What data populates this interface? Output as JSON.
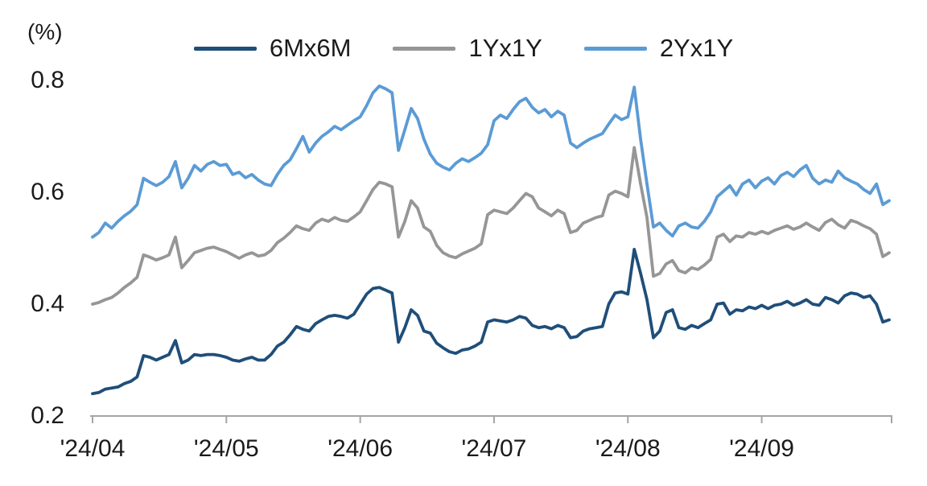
{
  "chart_data": {
    "type": "line",
    "title": "",
    "ylabel": "(%)",
    "xlabel": "",
    "grid": false,
    "legend_position": "top-center",
    "background_color": "#ffffff",
    "axis_color": "#a6a6a6",
    "text_color": "#1a1a1a",
    "ylim": [
      0.2,
      0.8
    ],
    "ytick_values": [
      0.8,
      0.6,
      0.4,
      0.2
    ],
    "yticklabels": [
      "0.8",
      "0.6",
      "0.4",
      "0.2"
    ],
    "xticklabels": [
      "'24/04",
      "'24/05",
      "'24/06",
      "'24/07",
      "'24/08",
      "'24/09"
    ],
    "xtick_indices": [
      0,
      21,
      42,
      63,
      84,
      105
    ],
    "series": [
      {
        "name": "6Mx6M",
        "color": "#1f4e79",
        "values": [
          0.24,
          0.242,
          0.248,
          0.25,
          0.252,
          0.258,
          0.262,
          0.27,
          0.308,
          0.305,
          0.3,
          0.305,
          0.31,
          0.335,
          0.295,
          0.3,
          0.31,
          0.308,
          0.31,
          0.31,
          0.308,
          0.305,
          0.3,
          0.298,
          0.302,
          0.305,
          0.3,
          0.3,
          0.31,
          0.325,
          0.332,
          0.345,
          0.36,
          0.355,
          0.352,
          0.365,
          0.372,
          0.378,
          0.38,
          0.378,
          0.375,
          0.382,
          0.4,
          0.418,
          0.428,
          0.43,
          0.425,
          0.42,
          0.332,
          0.358,
          0.39,
          0.38,
          0.352,
          0.348,
          0.33,
          0.322,
          0.315,
          0.312,
          0.318,
          0.32,
          0.325,
          0.332,
          0.368,
          0.372,
          0.37,
          0.368,
          0.372,
          0.378,
          0.375,
          0.362,
          0.358,
          0.36,
          0.356,
          0.362,
          0.358,
          0.34,
          0.342,
          0.352,
          0.356,
          0.358,
          0.36,
          0.4,
          0.42,
          0.422,
          0.418,
          0.498,
          0.455,
          0.408,
          0.34,
          0.352,
          0.385,
          0.39,
          0.358,
          0.355,
          0.362,
          0.358,
          0.365,
          0.372,
          0.4,
          0.402,
          0.382,
          0.39,
          0.388,
          0.395,
          0.392,
          0.398,
          0.392,
          0.398,
          0.4,
          0.405,
          0.398,
          0.402,
          0.408,
          0.4,
          0.398,
          0.412,
          0.408,
          0.402,
          0.415,
          0.42,
          0.418,
          0.412,
          0.415,
          0.4,
          0.368,
          0.372
        ]
      },
      {
        "name": "1Yx1Y",
        "color": "#969696",
        "values": [
          0.4,
          0.403,
          0.408,
          0.412,
          0.42,
          0.43,
          0.438,
          0.448,
          0.488,
          0.484,
          0.479,
          0.483,
          0.488,
          0.52,
          0.465,
          0.478,
          0.492,
          0.496,
          0.5,
          0.502,
          0.498,
          0.494,
          0.488,
          0.482,
          0.488,
          0.492,
          0.486,
          0.488,
          0.496,
          0.51,
          0.518,
          0.528,
          0.54,
          0.535,
          0.532,
          0.545,
          0.552,
          0.548,
          0.555,
          0.55,
          0.548,
          0.556,
          0.565,
          0.585,
          0.605,
          0.618,
          0.615,
          0.61,
          0.52,
          0.548,
          0.585,
          0.572,
          0.538,
          0.53,
          0.505,
          0.492,
          0.486,
          0.483,
          0.49,
          0.495,
          0.5,
          0.508,
          0.56,
          0.568,
          0.565,
          0.562,
          0.572,
          0.585,
          0.598,
          0.592,
          0.572,
          0.565,
          0.558,
          0.568,
          0.562,
          0.528,
          0.532,
          0.545,
          0.55,
          0.555,
          0.558,
          0.595,
          0.602,
          0.598,
          0.592,
          0.68,
          0.615,
          0.555,
          0.45,
          0.455,
          0.472,
          0.478,
          0.46,
          0.456,
          0.465,
          0.462,
          0.47,
          0.48,
          0.52,
          0.525,
          0.512,
          0.522,
          0.52,
          0.528,
          0.525,
          0.53,
          0.526,
          0.532,
          0.536,
          0.54,
          0.534,
          0.538,
          0.545,
          0.538,
          0.532,
          0.546,
          0.552,
          0.542,
          0.536,
          0.55,
          0.546,
          0.54,
          0.535,
          0.525,
          0.485,
          0.492
        ]
      },
      {
        "name": "2Yx1Y",
        "color": "#5b9bd5",
        "values": [
          0.52,
          0.528,
          0.545,
          0.536,
          0.548,
          0.558,
          0.566,
          0.578,
          0.625,
          0.618,
          0.612,
          0.618,
          0.628,
          0.655,
          0.608,
          0.625,
          0.648,
          0.638,
          0.65,
          0.655,
          0.648,
          0.65,
          0.632,
          0.636,
          0.626,
          0.632,
          0.622,
          0.615,
          0.612,
          0.632,
          0.648,
          0.658,
          0.678,
          0.7,
          0.672,
          0.688,
          0.7,
          0.708,
          0.718,
          0.712,
          0.72,
          0.728,
          0.735,
          0.755,
          0.778,
          0.79,
          0.785,
          0.778,
          0.675,
          0.712,
          0.75,
          0.732,
          0.695,
          0.668,
          0.652,
          0.645,
          0.64,
          0.652,
          0.66,
          0.655,
          0.662,
          0.67,
          0.685,
          0.728,
          0.738,
          0.732,
          0.748,
          0.762,
          0.768,
          0.752,
          0.742,
          0.748,
          0.735,
          0.745,
          0.738,
          0.688,
          0.68,
          0.688,
          0.695,
          0.7,
          0.705,
          0.722,
          0.738,
          0.73,
          0.735,
          0.788,
          0.695,
          0.615,
          0.538,
          0.545,
          0.532,
          0.522,
          0.54,
          0.545,
          0.538,
          0.536,
          0.548,
          0.565,
          0.592,
          0.602,
          0.612,
          0.595,
          0.615,
          0.622,
          0.608,
          0.62,
          0.626,
          0.615,
          0.63,
          0.636,
          0.628,
          0.64,
          0.648,
          0.625,
          0.615,
          0.622,
          0.618,
          0.638,
          0.626,
          0.62,
          0.615,
          0.605,
          0.598,
          0.615,
          0.578,
          0.585
        ]
      }
    ]
  }
}
